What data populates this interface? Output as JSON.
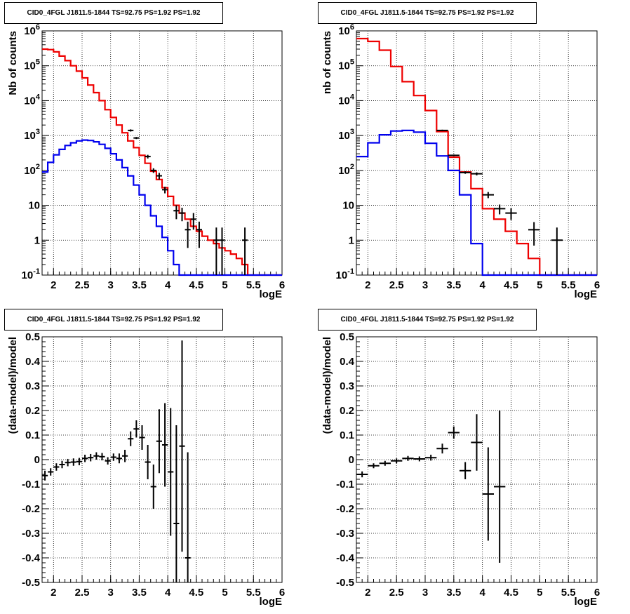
{
  "chart_data": [
    {
      "type": "line",
      "title": "CID0_4FGL J1811.5-1844 TS=92.75 PS=1.92 PS=1.92",
      "xlabel": "logE",
      "ylabel": "Nb of counts",
      "xlim": [
        1.8,
        6.0
      ],
      "ylim": [
        0.1,
        1000000
      ],
      "yscale": "log",
      "grid": true,
      "x_ticks": [
        "2",
        "2.5",
        "3",
        "3.5",
        "4",
        "4.5",
        "5",
        "5.5",
        "6"
      ],
      "y_ticks": [
        "10^-1",
        "1",
        "10",
        "10^2",
        "10^3",
        "10^4",
        "10^5",
        "10^6"
      ],
      "bin_edges": [
        1.8,
        1.9,
        2.0,
        2.1,
        2.2,
        2.3,
        2.4,
        2.5,
        2.6,
        2.7,
        2.8,
        2.9,
        3.0,
        3.1,
        3.2,
        3.3,
        3.4,
        3.5,
        3.6,
        3.7,
        3.8,
        3.9,
        4.0,
        4.1,
        4.2,
        4.3,
        4.4,
        4.5,
        4.6,
        4.7,
        4.8,
        4.9,
        5.0,
        5.1,
        5.2,
        5.3,
        5.4,
        5.5,
        5.6,
        5.7,
        5.8,
        5.9,
        6.0
      ],
      "series": [
        {
          "color": "#ee0000",
          "values": [
            300000,
            290000,
            250000,
            190000,
            140000,
            100000,
            70000,
            45000,
            28000,
            17000,
            10000,
            5500,
            3300,
            2000,
            1200,
            700,
            450,
            270,
            160,
            95,
            55,
            32,
            18,
            10,
            6,
            4,
            2.5,
            1.8,
            1.3,
            1.0,
            0.8,
            0.6,
            0.5,
            0.4,
            0.3,
            0.2,
            0.1,
            0.1,
            0.1,
            0.1,
            0.1,
            0.1
          ]
        },
        {
          "color": "#0000ee",
          "values": [
            90,
            170,
            280,
            400,
            520,
            620,
            700,
            740,
            720,
            660,
            560,
            430,
            300,
            200,
            120,
            70,
            38,
            20,
            10,
            5,
            2.5,
            1.2,
            0.5,
            0.2,
            0.1,
            0.1,
            0.1,
            0.1,
            0.1,
            0.1,
            0.1,
            0.1,
            0.1,
            0.1,
            0.1,
            0.1,
            0.1,
            0.1,
            0.1,
            0.1,
            0.1,
            0.1
          ]
        }
      ],
      "data_points": {
        "x": [
          3.35,
          3.45,
          3.65,
          3.75,
          3.85,
          3.95,
          4.15,
          4.25,
          4.35,
          4.45,
          4.55,
          4.85,
          4.95,
          5.35
        ],
        "y": [
          1400,
          850,
          250,
          100,
          70,
          28,
          7,
          6,
          2,
          4,
          2,
          1,
          1,
          1
        ],
        "ylow": [
          1300,
          790,
          220,
          85,
          55,
          22,
          4,
          3.5,
          0.6,
          2,
          0.6,
          0.1,
          0.1,
          0.1
        ],
        "yhigh": [
          1500,
          910,
          280,
          115,
          85,
          34,
          10,
          8.5,
          3.4,
          6,
          3.4,
          2.3,
          2.3,
          2.3
        ]
      }
    },
    {
      "type": "line",
      "title": "CID0_4FGL J1811.5-1844 TS=92.75 PS=1.92 PS=1.92",
      "xlabel": "logE",
      "ylabel": "nb of counts",
      "xlim": [
        1.8,
        6.0
      ],
      "ylim": [
        0.1,
        1000000
      ],
      "yscale": "log",
      "grid": true,
      "x_ticks": [
        "2",
        "2.5",
        "3",
        "3.5",
        "4",
        "4.5",
        "5",
        "5.5",
        "6"
      ],
      "y_ticks": [
        "10^-1",
        "1",
        "10",
        "10^2",
        "10^3",
        "10^4",
        "10^5",
        "10^6"
      ],
      "bin_edges": [
        1.8,
        2.0,
        2.2,
        2.4,
        2.6,
        2.8,
        3.0,
        3.2,
        3.4,
        3.6,
        3.8,
        4.0,
        4.2,
        4.4,
        4.6,
        4.8,
        5.0,
        5.2,
        5.4,
        5.6,
        5.8,
        6.0
      ],
      "series": [
        {
          "color": "#ee0000",
          "values": [
            600000,
            500000,
            280000,
            95000,
            35000,
            14000,
            5200,
            1300,
            240,
            90,
            30,
            8,
            4,
            1.8,
            0.8,
            0.3,
            0.1,
            0.1,
            0.1,
            0.1,
            0.1
          ]
        },
        {
          "color": "#0000ee",
          "values": [
            250,
            620,
            1050,
            1350,
            1400,
            1250,
            600,
            260,
            100,
            20,
            0.8,
            0.1,
            0.1,
            0.1,
            0.1,
            0.1,
            0.1,
            0.1,
            0.1,
            0.1,
            0.1
          ]
        }
      ],
      "data_points": {
        "x": [
          3.3,
          3.5,
          3.7,
          3.9,
          4.1,
          4.3,
          4.5,
          4.9,
          5.3
        ],
        "y": [
          1400,
          270,
          87,
          80,
          20,
          8,
          6,
          2,
          1
        ],
        "ylow": [
          1330,
          255,
          80,
          72,
          16,
          5.5,
          3.8,
          0.7,
          0.1
        ],
        "yhigh": [
          1470,
          285,
          94,
          88,
          24,
          10.5,
          8.2,
          3.3,
          2.3
        ]
      }
    },
    {
      "type": "scatter",
      "title": "CID0_4FGL J1811.5-1844 TS=92.75 PS=1.92 PS=1.92",
      "xlabel": "logE",
      "ylabel": "(data-model)/model",
      "xlim": [
        1.8,
        6.0
      ],
      "ylim": [
        -0.5,
        0.5
      ],
      "grid": true,
      "x_ticks": [
        "2",
        "2.5",
        "3",
        "3.5",
        "4",
        "4.5",
        "5",
        "5.5",
        "6"
      ],
      "y_ticks": [
        "-0.5",
        "-0.4",
        "-0.3",
        "-0.2",
        "-0.1",
        "0",
        "0.1",
        "0.2",
        "0.3",
        "0.4",
        "0.5"
      ],
      "x_halfwidth": 0.05,
      "points": {
        "x": [
          1.85,
          1.95,
          2.05,
          2.15,
          2.25,
          2.35,
          2.45,
          2.55,
          2.65,
          2.75,
          2.85,
          2.95,
          3.05,
          3.15,
          3.25,
          3.35,
          3.45,
          3.55,
          3.65,
          3.75,
          3.85,
          3.95,
          4.05,
          4.15,
          4.25,
          4.35
        ],
        "y": [
          -0.065,
          -0.05,
          -0.03,
          -0.02,
          -0.012,
          -0.01,
          -0.008,
          0.005,
          0.008,
          0.015,
          0.012,
          -0.005,
          0.01,
          0.005,
          0.015,
          0.085,
          0.125,
          0.09,
          -0.01,
          -0.11,
          0.075,
          0.06,
          -0.05,
          -0.26,
          0.055,
          -0.4
        ],
        "err": [
          0.02,
          0.015,
          0.015,
          0.015,
          0.015,
          0.015,
          0.015,
          0.015,
          0.015,
          0.015,
          0.015,
          0.015,
          0.015,
          0.02,
          0.025,
          0.03,
          0.035,
          0.05,
          0.07,
          0.09,
          0.13,
          0.17,
          0.26,
          0.4,
          0.43,
          0.43
        ]
      }
    },
    {
      "type": "scatter",
      "title": "CID0_4FGL J1811.5-1844 TS=92.75 PS=1.92 PS=1.92",
      "xlabel": "logE",
      "ylabel": "(data-model)/model",
      "xlim": [
        1.8,
        6.0
      ],
      "ylim": [
        -0.5,
        0.5
      ],
      "grid": true,
      "x_ticks": [
        "2",
        "2.5",
        "3",
        "3.5",
        "4",
        "4.5",
        "5",
        "5.5",
        "6"
      ],
      "y_ticks": [
        "-0.5",
        "-0.4",
        "-0.3",
        "-0.2",
        "-0.1",
        "0",
        "0.1",
        "0.2",
        "0.3",
        "0.4",
        "0.5"
      ],
      "x_halfwidth": 0.1,
      "points": {
        "x": [
          1.9,
          2.1,
          2.3,
          2.5,
          2.7,
          2.9,
          3.1,
          3.3,
          3.5,
          3.7,
          3.9,
          4.1,
          4.3
        ],
        "y": [
          -0.06,
          -0.025,
          -0.015,
          -0.005,
          0.005,
          0.003,
          0.008,
          0.045,
          0.11,
          -0.045,
          0.07,
          -0.14,
          -0.11
        ],
        "err": [
          0.012,
          0.01,
          0.01,
          0.01,
          0.01,
          0.01,
          0.012,
          0.02,
          0.025,
          0.035,
          0.115,
          0.19,
          0.31
        ]
      }
    }
  ]
}
